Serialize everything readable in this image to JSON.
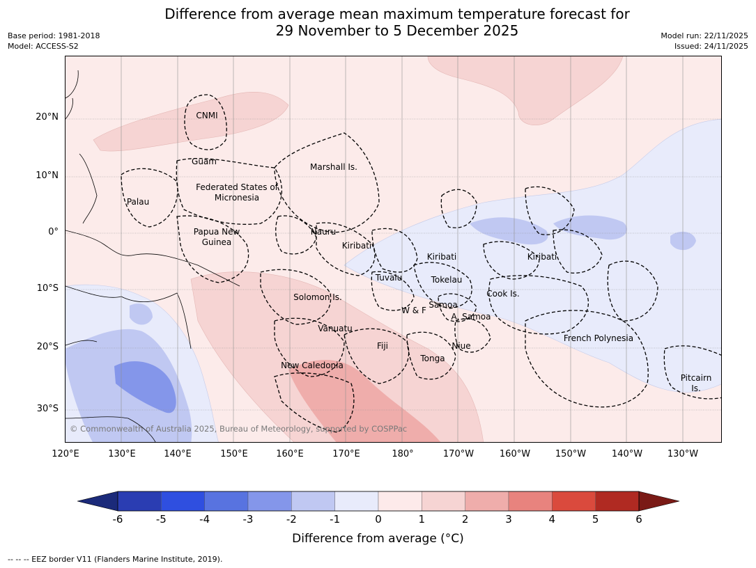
{
  "title_line1": "Difference from average mean maximum temperature forecast for",
  "title_line2": "29 November to 5 December 2025",
  "meta_left": [
    "Base period: 1981-2018",
    "Model: ACCESS-S2"
  ],
  "meta_right": [
    "Model run: 22/11/2025",
    "Issued: 24/11/2025"
  ],
  "map": {
    "lat_labels": [
      "20°N",
      "10°N",
      "0°",
      "10°S",
      "20°S",
      "30°S"
    ],
    "lon_labels": [
      "120°E",
      "130°E",
      "140°E",
      "150°E",
      "160°E",
      "170°E",
      "180°",
      "170°W",
      "160°W",
      "150°W",
      "140°W",
      "130°W"
    ],
    "copyright": "© Commonwealth of Australia 2025, Bureau of Meteorology, supported by COSPPac",
    "regions": [
      {
        "name": "CNMI"
      },
      {
        "name": "Guam"
      },
      {
        "name": "Marshall Is."
      },
      {
        "name": "Federated States of Micronesia"
      },
      {
        "name": "Palau"
      },
      {
        "name": "Papua New Guinea"
      },
      {
        "name": "Nauru"
      },
      {
        "name": "Kiribati"
      },
      {
        "name": "Kiribati"
      },
      {
        "name": "Kiribati"
      },
      {
        "name": "Tuvalu"
      },
      {
        "name": "Tokelau"
      },
      {
        "name": "Solomon Is."
      },
      {
        "name": "Samoa"
      },
      {
        "name": "W & F"
      },
      {
        "name": "A. Samoa"
      },
      {
        "name": "Cook Is."
      },
      {
        "name": "Vanuatu"
      },
      {
        "name": "Fiji"
      },
      {
        "name": "Niue"
      },
      {
        "name": "Tonga"
      },
      {
        "name": "French Polynesia"
      },
      {
        "name": "New Caledonia"
      },
      {
        "name": "Pitcairn Is."
      }
    ]
  },
  "colorbar": {
    "ticks": [
      "-6",
      "-5",
      "-4",
      "-3",
      "-2",
      "-1",
      "0",
      "1",
      "2",
      "3",
      "4",
      "5",
      "6"
    ],
    "colors": [
      "#1b2a7a",
      "#2a3db2",
      "#2f4fe0",
      "#5873e0",
      "#8496ea",
      "#c0c8f2",
      "#e8ebfb",
      "#fdeaea",
      "#f6d4d3",
      "#efadab",
      "#e8837e",
      "#da4a3d",
      "#b02a22",
      "#7a1a16"
    ],
    "label": "Difference from average ($^\\circ$C)",
    "label_display": "Difference from average (°C)"
  },
  "footnote": "--  --  -- EEZ border V11 (Flanders Marine Institute, 2019)."
}
